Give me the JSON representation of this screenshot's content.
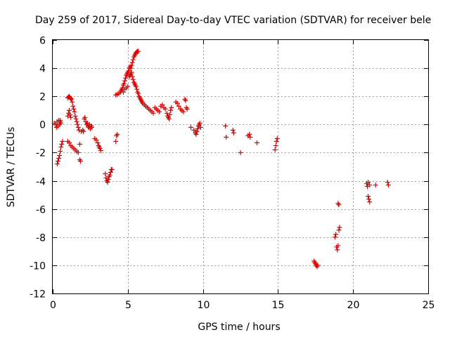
{
  "chart_data": {
    "type": "scatter",
    "title": "Day 259 of 2017, Sidereal Day-to-day VTEC variation (SDTVAR) for receiver bele",
    "xlabel": "GPS time / hours",
    "ylabel": "SDTVAR / TECUs",
    "xlim": [
      0,
      25
    ],
    "ylim": [
      -12,
      6
    ],
    "xticks": [
      0,
      5,
      10,
      15,
      20,
      25
    ],
    "yticks": [
      -12,
      -10,
      -8,
      -6,
      -4,
      -2,
      0,
      2,
      4,
      6
    ],
    "grid": true,
    "marker": "plus",
    "color": "#e00000",
    "series": [
      {
        "name": "SDTVAR",
        "points": [
          [
            0.1,
            0.1
          ],
          [
            0.2,
            0.0
          ],
          [
            0.25,
            -0.2
          ],
          [
            0.3,
            0.2
          ],
          [
            0.35,
            -0.1
          ],
          [
            0.4,
            0.3
          ],
          [
            0.45,
            0.0
          ],
          [
            0.5,
            0.2
          ],
          [
            0.3,
            -2.8
          ],
          [
            0.35,
            -2.6
          ],
          [
            0.4,
            -2.4
          ],
          [
            0.45,
            -2.2
          ],
          [
            0.5,
            -1.9
          ],
          [
            0.55,
            -1.6
          ],
          [
            0.6,
            -1.4
          ],
          [
            0.65,
            -1.2
          ],
          [
            0.5,
            0.3
          ],
          [
            0.55,
            0.1
          ],
          [
            1.0,
            1.9
          ],
          [
            1.05,
            1.95
          ],
          [
            1.1,
            2.0
          ],
          [
            1.15,
            1.9
          ],
          [
            1.2,
            1.85
          ],
          [
            1.25,
            1.8
          ],
          [
            1.3,
            1.6
          ],
          [
            1.35,
            1.3
          ],
          [
            1.4,
            1.1
          ],
          [
            1.45,
            0.9
          ],
          [
            1.5,
            0.6
          ],
          [
            1.55,
            0.4
          ],
          [
            1.6,
            0.2
          ],
          [
            1.65,
            0.0
          ],
          [
            1.7,
            -0.2
          ],
          [
            1.75,
            -0.4
          ],
          [
            1.0,
            0.6
          ],
          [
            1.05,
            0.8
          ],
          [
            1.1,
            1.0
          ],
          [
            1.15,
            0.7
          ],
          [
            1.2,
            0.5
          ],
          [
            1.0,
            -1.2
          ],
          [
            1.1,
            -1.3
          ],
          [
            1.2,
            -1.5
          ],
          [
            1.3,
            -1.6
          ],
          [
            1.4,
            -1.7
          ],
          [
            1.5,
            -1.8
          ],
          [
            1.6,
            -1.9
          ],
          [
            1.7,
            -2.0
          ],
          [
            1.8,
            -2.5
          ],
          [
            1.85,
            -2.6
          ],
          [
            1.8,
            -1.4
          ],
          [
            1.9,
            -0.5
          ],
          [
            2.0,
            -0.4
          ],
          [
            2.05,
            -0.5
          ],
          [
            2.1,
            0.4
          ],
          [
            2.15,
            0.5
          ],
          [
            2.2,
            0.2
          ],
          [
            2.25,
            0.0
          ],
          [
            2.3,
            0.1
          ],
          [
            2.35,
            -0.1
          ],
          [
            2.4,
            -0.2
          ],
          [
            2.45,
            0.0
          ],
          [
            2.5,
            -0.3
          ],
          [
            2.55,
            -0.1
          ],
          [
            2.6,
            -0.2
          ],
          [
            2.8,
            -1.0
          ],
          [
            2.9,
            -1.1
          ],
          [
            3.0,
            -1.3
          ],
          [
            3.05,
            -1.5
          ],
          [
            3.1,
            -1.6
          ],
          [
            3.15,
            -1.7
          ],
          [
            3.2,
            -1.85
          ],
          [
            3.5,
            -3.5
          ],
          [
            3.55,
            -3.8
          ],
          [
            3.6,
            -4.0
          ],
          [
            3.65,
            -4.1
          ],
          [
            3.7,
            -3.9
          ],
          [
            3.75,
            -3.7
          ],
          [
            3.8,
            -3.6
          ],
          [
            3.85,
            -3.4
          ],
          [
            3.9,
            -3.2
          ],
          [
            3.95,
            -3.2
          ],
          [
            4.2,
            -1.2
          ],
          [
            4.25,
            -0.8
          ],
          [
            4.3,
            -0.7
          ],
          [
            4.2,
            2.1
          ],
          [
            4.3,
            2.15
          ],
          [
            4.4,
            2.2
          ],
          [
            4.5,
            2.3
          ],
          [
            4.55,
            2.4
          ],
          [
            4.6,
            2.5
          ],
          [
            4.65,
            2.6
          ],
          [
            4.7,
            2.8
          ],
          [
            4.75,
            2.9
          ],
          [
            4.8,
            3.1
          ],
          [
            4.85,
            3.3
          ],
          [
            4.9,
            3.5
          ],
          [
            4.95,
            3.6
          ],
          [
            5.0,
            3.7
          ],
          [
            4.7,
            2.3
          ],
          [
            4.8,
            2.5
          ],
          [
            4.9,
            2.6
          ],
          [
            5.0,
            2.7
          ],
          [
            5.05,
            3.8
          ],
          [
            5.1,
            4.0
          ],
          [
            5.15,
            4.1
          ],
          [
            5.2,
            4.0
          ],
          [
            5.25,
            4.2
          ],
          [
            5.3,
            4.4
          ],
          [
            5.35,
            4.6
          ],
          [
            5.4,
            4.8
          ],
          [
            5.45,
            4.9
          ],
          [
            5.5,
            5.0
          ],
          [
            5.55,
            5.1
          ],
          [
            5.6,
            5.15
          ],
          [
            5.65,
            5.2
          ],
          [
            5.7,
            5.2
          ],
          [
            5.1,
            3.4
          ],
          [
            5.15,
            3.5
          ],
          [
            5.2,
            3.6
          ],
          [
            5.25,
            3.7
          ],
          [
            5.3,
            3.4
          ],
          [
            5.35,
            3.2
          ],
          [
            5.4,
            3.0
          ],
          [
            5.45,
            2.9
          ],
          [
            5.5,
            2.8
          ],
          [
            5.55,
            2.7
          ],
          [
            5.6,
            2.5
          ],
          [
            5.65,
            2.3
          ],
          [
            5.7,
            2.2
          ],
          [
            5.75,
            2.0
          ],
          [
            5.8,
            1.9
          ],
          [
            5.85,
            1.8
          ],
          [
            5.9,
            1.7
          ],
          [
            5.95,
            1.6
          ],
          [
            6.0,
            1.5
          ],
          [
            6.1,
            1.4
          ],
          [
            6.2,
            1.3
          ],
          [
            6.3,
            1.2
          ],
          [
            6.4,
            1.1
          ],
          [
            6.5,
            1.0
          ],
          [
            6.6,
            0.9
          ],
          [
            6.7,
            0.8
          ],
          [
            6.8,
            1.2
          ],
          [
            6.9,
            1.1
          ],
          [
            7.0,
            1.0
          ],
          [
            7.1,
            0.9
          ],
          [
            7.2,
            1.3
          ],
          [
            7.3,
            1.4
          ],
          [
            7.4,
            1.2
          ],
          [
            7.5,
            1.1
          ],
          [
            7.6,
            0.8
          ],
          [
            7.65,
            0.6
          ],
          [
            7.7,
            0.5
          ],
          [
            7.75,
            0.4
          ],
          [
            7.8,
            0.7
          ],
          [
            7.85,
            1.0
          ],
          [
            7.9,
            1.2
          ],
          [
            8.2,
            1.6
          ],
          [
            8.3,
            1.5
          ],
          [
            8.4,
            1.3
          ],
          [
            8.5,
            1.1
          ],
          [
            8.6,
            1.0
          ],
          [
            8.7,
            0.9
          ],
          [
            8.8,
            1.8
          ],
          [
            8.85,
            1.7
          ],
          [
            8.9,
            1.2
          ],
          [
            8.95,
            1.1
          ],
          [
            9.2,
            -0.2
          ],
          [
            9.4,
            -0.4
          ],
          [
            9.5,
            -0.6
          ],
          [
            9.55,
            -0.7
          ],
          [
            9.6,
            -0.5
          ],
          [
            9.65,
            -0.3
          ],
          [
            9.7,
            -0.1
          ],
          [
            9.75,
            0.0
          ],
          [
            9.8,
            0.1
          ],
          [
            9.85,
            -0.2
          ],
          [
            11.5,
            -0.1
          ],
          [
            11.55,
            -0.9
          ],
          [
            12.0,
            -0.4
          ],
          [
            12.05,
            -0.6
          ],
          [
            12.5,
            -2.0
          ],
          [
            13.0,
            -0.8
          ],
          [
            13.1,
            -0.7
          ],
          [
            13.15,
            -0.9
          ],
          [
            13.6,
            -1.3
          ],
          [
            14.8,
            -1.8
          ],
          [
            14.85,
            -1.5
          ],
          [
            14.9,
            -1.2
          ],
          [
            14.95,
            -1.0
          ],
          [
            17.4,
            -9.7
          ],
          [
            17.45,
            -9.8
          ],
          [
            17.5,
            -9.9
          ],
          [
            17.55,
            -10.0
          ],
          [
            17.6,
            -10.1
          ],
          [
            17.65,
            -10.0
          ],
          [
            18.8,
            -8.0
          ],
          [
            18.85,
            -7.8
          ],
          [
            18.9,
            -8.7
          ],
          [
            18.95,
            -8.9
          ],
          [
            19.0,
            -8.6
          ],
          [
            19.05,
            -7.5
          ],
          [
            19.1,
            -7.3
          ],
          [
            19.0,
            -5.6
          ],
          [
            19.05,
            -5.7
          ],
          [
            20.9,
            -4.2
          ],
          [
            20.95,
            -4.4
          ],
          [
            21.0,
            -4.1
          ],
          [
            21.0,
            -5.1
          ],
          [
            21.05,
            -5.3
          ],
          [
            21.1,
            -5.5
          ],
          [
            21.1,
            -4.3
          ],
          [
            21.5,
            -4.3
          ],
          [
            22.3,
            -4.1
          ],
          [
            22.35,
            -4.3
          ]
        ]
      }
    ]
  }
}
